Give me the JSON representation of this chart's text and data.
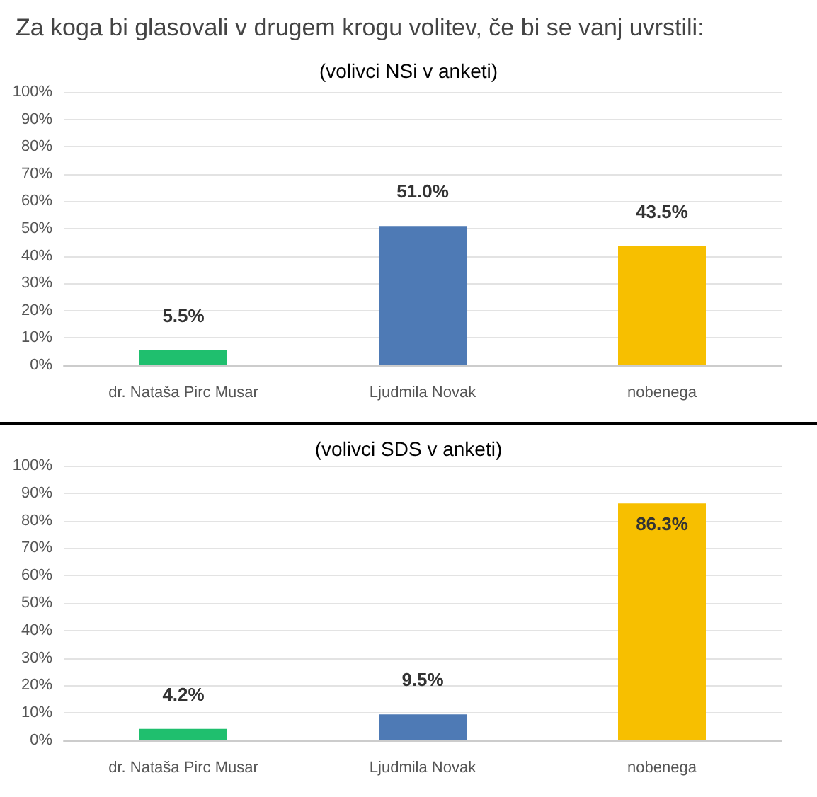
{
  "chart_data": [
    {
      "type": "bar",
      "title": "Za koga bi glasovali v drugem krogu volitev, če bi se vanj uvrstili:",
      "subtitle": "(volivci NSi v anketi)",
      "categories": [
        "dr. Nataša Pirc Musar",
        "Ljudmila Novak",
        "nobenega"
      ],
      "values": [
        5.5,
        51.0,
        43.5
      ],
      "colors": [
        "#1fbf6e",
        "#4e7ab5",
        "#f7bf00"
      ],
      "value_labels": [
        "5.5%",
        "51.0%",
        "43.5%"
      ],
      "ylim": [
        0,
        100
      ],
      "yticks": [
        {
          "value": 0,
          "label": "0%"
        },
        {
          "value": 10,
          "label": "10%"
        },
        {
          "value": 20,
          "label": "20%"
        },
        {
          "value": 30,
          "label": "30%"
        },
        {
          "value": 40,
          "label": "40%"
        },
        {
          "value": 50,
          "label": "50%"
        },
        {
          "value": 60,
          "label": "60%"
        },
        {
          "value": 70,
          "label": "70%"
        },
        {
          "value": 80,
          "label": "80%"
        },
        {
          "value": 90,
          "label": "90%"
        },
        {
          "value": 100,
          "label": "100%"
        }
      ],
      "grid": "y"
    },
    {
      "type": "bar",
      "subtitle": "(volivci SDS v anketi)",
      "categories": [
        "dr. Nataša Pirc Musar",
        "Ljudmila Novak",
        "nobenega"
      ],
      "values": [
        4.2,
        9.5,
        86.3
      ],
      "colors": [
        "#1fbf6e",
        "#4e7ab5",
        "#f7bf00"
      ],
      "value_labels": [
        "4.2%",
        "9.5%",
        "86.3%"
      ],
      "ylim": [
        0,
        100
      ],
      "yticks": [
        {
          "value": 0,
          "label": "0%"
        },
        {
          "value": 10,
          "label": "10%"
        },
        {
          "value": 20,
          "label": "20%"
        },
        {
          "value": 30,
          "label": "30%"
        },
        {
          "value": 40,
          "label": "40%"
        },
        {
          "value": 50,
          "label": "50%"
        },
        {
          "value": 60,
          "label": "60%"
        },
        {
          "value": 70,
          "label": "70%"
        },
        {
          "value": 80,
          "label": "80%"
        },
        {
          "value": 90,
          "label": "90%"
        },
        {
          "value": 100,
          "label": "100%"
        }
      ],
      "grid": "y"
    }
  ]
}
